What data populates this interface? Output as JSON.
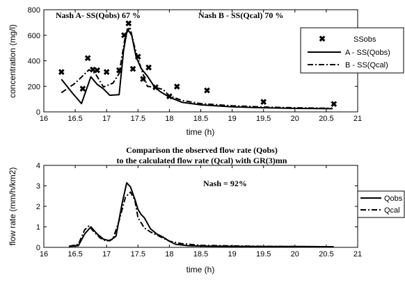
{
  "chart_data": [
    {
      "type": "line",
      "xlabel": "time (h)",
      "ylabel": "concentration (mg/l)",
      "xlim": [
        16,
        21
      ],
      "ylim": [
        0,
        800
      ],
      "xticks": [
        "16",
        "16.5",
        "17",
        "17.5",
        "18",
        "18.5",
        "19",
        "19.5",
        "20",
        "20.5",
        "21"
      ],
      "yticks": [
        "0",
        "200",
        "400",
        "600",
        "800"
      ],
      "annotations": [
        "Nash A- SS(Qobs) 67 %",
        "Nash B - SS(Qcal) 70 %"
      ],
      "legend_position": "top-right",
      "series": [
        {
          "name": "SSobs",
          "style": "markers-x",
          "x": [
            16.28,
            16.62,
            16.7,
            16.78,
            16.85,
            17.0,
            17.2,
            17.28,
            17.35,
            17.42,
            17.5,
            17.58,
            17.67,
            17.78,
            18.0,
            18.12,
            18.6,
            19.5,
            20.62
          ],
          "y": [
            310,
            180,
            420,
            330,
            325,
            310,
            325,
            600,
            690,
            335,
            430,
            255,
            345,
            190,
            120,
            195,
            165,
            75,
            60
          ]
        },
        {
          "name": "A - SS(Qobs)",
          "style": "solid",
          "x": [
            16.28,
            16.45,
            16.6,
            16.75,
            16.85,
            16.95,
            17.05,
            17.2,
            17.27,
            17.33,
            17.4,
            17.47,
            17.55,
            17.65,
            17.75,
            17.85,
            18.0,
            18.2,
            18.5,
            19.0,
            19.5,
            20.0,
            20.6
          ],
          "y": [
            255,
            150,
            65,
            275,
            215,
            180,
            130,
            135,
            480,
            650,
            600,
            430,
            340,
            280,
            205,
            160,
            115,
            75,
            55,
            40,
            32,
            27,
            25
          ]
        },
        {
          "name": "B - SS(Qcal)",
          "style": "dash-dot",
          "x": [
            16.28,
            16.5,
            16.72,
            16.82,
            16.95,
            17.1,
            17.2,
            17.3,
            17.37,
            17.45,
            17.55,
            17.65,
            17.75,
            17.9,
            18.0,
            18.2,
            18.5,
            19.0,
            19.5,
            20.0,
            20.6
          ],
          "y": [
            150,
            225,
            330,
            300,
            195,
            225,
            300,
            600,
            665,
            500,
            340,
            200,
            195,
            175,
            125,
            90,
            65,
            48,
            38,
            32,
            28
          ]
        }
      ]
    },
    {
      "type": "line",
      "title": "Comparison the observed flow rate (Qobs)",
      "subtitle": "to the calculated flow rate (Qcal) with GR(3)mn",
      "xlabel": "time (h)",
      "ylabel": "flow rate (mm/h/km2)",
      "xlim": [
        16,
        21
      ],
      "ylim": [
        0,
        4
      ],
      "xticks": [
        "16",
        "16.5",
        "17",
        "17.5",
        "18",
        "18.5",
        "19",
        "19.5",
        "20",
        "20.5",
        "21"
      ],
      "yticks": [
        "0",
        "1",
        "2",
        "3",
        "4"
      ],
      "annotations": [
        "Nash = 92%"
      ],
      "legend_position": "top-right",
      "series": [
        {
          "name": "Qobs",
          "style": "solid",
          "x": [
            16.4,
            16.55,
            16.65,
            16.75,
            16.85,
            16.95,
            17.05,
            17.15,
            17.25,
            17.32,
            17.38,
            17.45,
            17.5,
            17.55,
            17.6,
            17.7,
            17.8,
            17.9,
            18.0,
            18.1,
            18.3,
            18.6,
            19.0,
            19.5,
            20.0,
            20.62
          ],
          "y": [
            0.05,
            0.08,
            0.65,
            1.0,
            0.65,
            0.4,
            0.32,
            0.55,
            2.2,
            3.15,
            2.95,
            2.35,
            1.85,
            1.6,
            1.45,
            0.9,
            0.65,
            0.5,
            0.3,
            0.15,
            0.08,
            0.06,
            0.05,
            0.04,
            0.04,
            0.03
          ]
        },
        {
          "name": "Qcal",
          "style": "dash-dot",
          "x": [
            16.4,
            16.55,
            16.65,
            16.72,
            16.8,
            16.9,
            17.0,
            17.1,
            17.2,
            17.3,
            17.38,
            17.45,
            17.5,
            17.6,
            17.7,
            17.8,
            17.9,
            18.0,
            18.2,
            18.5,
            19.0,
            19.5,
            20.0,
            20.62
          ],
          "y": [
            0.05,
            0.15,
            0.85,
            1.05,
            0.75,
            0.45,
            0.3,
            0.4,
            1.3,
            2.45,
            2.7,
            2.3,
            1.45,
            0.95,
            0.75,
            0.6,
            0.45,
            0.3,
            0.18,
            0.1,
            0.07,
            0.05,
            0.04,
            0.03
          ]
        }
      ]
    }
  ]
}
